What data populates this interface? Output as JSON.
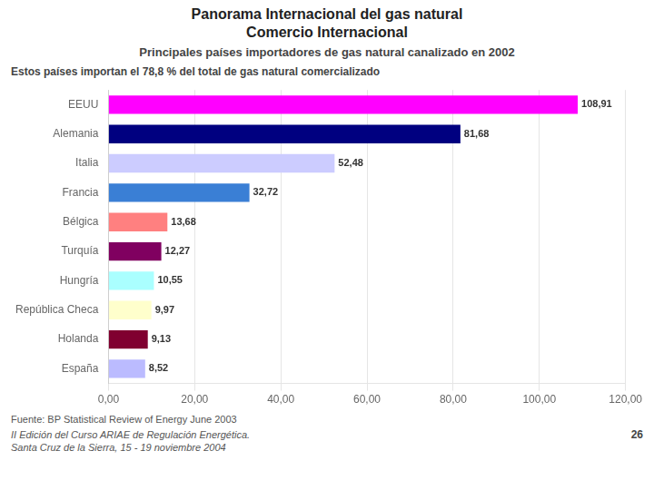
{
  "chart_data": {
    "type": "bar",
    "orientation": "horizontal",
    "title": [
      "Panorama Internacional del gas natural",
      "Comercio Internacional"
    ],
    "subtitle": "Principales países importadores de gas natural canalizado en 2002",
    "annotations": [
      "Estos países importan el 78,8 % del total de gas natural comercializado",
      "Fuente: BP Statistical Review of Energy June 2003",
      "II Edición del Curso ARIAE de Regulación Energética.",
      "Santa Cruz de la Sierra, 15 - 19 noviembre 2004",
      "26"
    ],
    "categories": [
      "EEUU",
      "Alemania",
      "Italia",
      "Francia",
      "Bélgica",
      "Turquía",
      "Hungría",
      "República Checa",
      "Holanda",
      "España"
    ],
    "values": [
      108.91,
      81.68,
      52.48,
      32.72,
      13.68,
      12.27,
      10.55,
      9.97,
      9.13,
      8.52
    ],
    "value_labels": [
      "108,91",
      "81,68",
      "52,48",
      "32,72",
      "13,68",
      "12,27",
      "10,55",
      "9,97",
      "9,13",
      "8,52"
    ],
    "colors": [
      "#FF00FF",
      "#000080",
      "#CCCCFF",
      "#3A7FD5",
      "#FF8080",
      "#800060",
      "#AAFFFF",
      "#FFFFCC",
      "#800030",
      "#BBBBFF"
    ],
    "xlim": [
      0,
      120
    ],
    "xticks": [
      {
        "value": 0,
        "label": "0,00"
      },
      {
        "value": 20,
        "label": "20,00"
      },
      {
        "value": 40,
        "label": "40,00"
      },
      {
        "value": 60,
        "label": "60,00"
      },
      {
        "value": 80,
        "label": "80,00"
      },
      {
        "value": 100,
        "label": "100,00"
      },
      {
        "value": 120,
        "label": "120,00"
      }
    ],
    "grid": true,
    "data_labels": true
  }
}
